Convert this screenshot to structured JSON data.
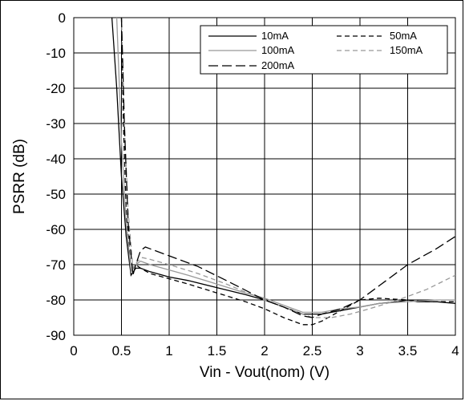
{
  "chart_data": {
    "type": "line",
    "title": "",
    "xlabel": "Vin - Vout(nom) (V)",
    "ylabel": "PSRR (dB)",
    "xlim": [
      0,
      4
    ],
    "ylim": [
      -90,
      0
    ],
    "xticks": [
      0,
      0.5,
      1,
      1.5,
      2,
      2.5,
      3,
      3.5,
      4
    ],
    "xtick_labels": [
      "0",
      "0.5",
      "1",
      "1.5",
      "2",
      "2.5",
      "3",
      "3.5",
      "4"
    ],
    "yticks": [
      0,
      -10,
      -20,
      -30,
      -40,
      -50,
      -60,
      -70,
      -80,
      -90
    ],
    "ytick_labels": [
      "0",
      "-10",
      "-20",
      "-30",
      "-40",
      "-50",
      "-60",
      "-70",
      "-80",
      "-90"
    ],
    "grid": true,
    "legend_position": "top-right",
    "series": [
      {
        "name": "10mA",
        "color": "#000000",
        "dash": "solid",
        "x": [
          0.4,
          0.45,
          0.5,
          0.55,
          0.6,
          0.65,
          0.7,
          0.8,
          1.0,
          1.2,
          1.5,
          1.8,
          2.0,
          2.2,
          2.4,
          2.5,
          2.6,
          2.8,
          3.0,
          3.2,
          3.4,
          3.5,
          3.6,
          3.8,
          4.0
        ],
        "y": [
          0,
          -20,
          -45,
          -62,
          -73,
          -71,
          -71,
          -72,
          -73.5,
          -74.5,
          -76.5,
          -78.5,
          -80,
          -82,
          -84,
          -84,
          -84,
          -83,
          -82,
          -81,
          -80.5,
          -80,
          -80.5,
          -80.5,
          -81
        ]
      },
      {
        "name": "50mA",
        "color": "#000000",
        "dash": "short-dash",
        "x": [
          0.5,
          0.52,
          0.55,
          0.6,
          0.65,
          0.7,
          0.8,
          1.0,
          1.2,
          1.5,
          1.8,
          2.0,
          2.2,
          2.4,
          2.5,
          2.6,
          2.8,
          3.0,
          3.2,
          3.5,
          3.7,
          4.0
        ],
        "y": [
          0,
          -30,
          -55,
          -72,
          -70,
          -71,
          -72.5,
          -74,
          -75.5,
          -78,
          -80.5,
          -82.5,
          -85,
          -87,
          -87,
          -86,
          -83,
          -80,
          -79.5,
          -80,
          -80.5,
          -80.5
        ]
      },
      {
        "name": "100mA",
        "color": "#999999",
        "dash": "solid",
        "x": [
          0.45,
          0.5,
          0.55,
          0.6,
          0.65,
          0.7,
          0.8,
          1.0,
          1.2,
          1.5,
          1.8,
          2.0,
          2.2,
          2.4,
          2.5,
          2.6,
          2.8,
          3.0,
          3.2,
          3.5,
          3.8,
          4.0
        ],
        "y": [
          0,
          -35,
          -58,
          -72,
          -70,
          -69,
          -70,
          -71.5,
          -73,
          -75.5,
          -78,
          -79.5,
          -81.5,
          -83.5,
          -83.5,
          -83.5,
          -82.5,
          -82,
          -81,
          -80.5,
          -80,
          -80
        ]
      },
      {
        "name": "150mA",
        "color": "#999999",
        "dash": "short-dash",
        "x": [
          0.5,
          0.53,
          0.57,
          0.62,
          0.67,
          0.72,
          0.8,
          1.0,
          1.3,
          1.6,
          2.0,
          2.3,
          2.5,
          2.7,
          2.9,
          3.1,
          3.4,
          3.7,
          4.0
        ],
        "y": [
          0,
          -30,
          -55,
          -71,
          -69,
          -68,
          -68.5,
          -70,
          -72.5,
          -75.5,
          -80,
          -83,
          -85,
          -85,
          -84,
          -82.5,
          -80,
          -77,
          -73
        ]
      },
      {
        "name": "200mA",
        "color": "#000000",
        "dash": "long-dash",
        "x": [
          0.5,
          0.53,
          0.57,
          0.62,
          0.65,
          0.7,
          0.75,
          0.8,
          1.0,
          1.3,
          1.6,
          2.0,
          2.2,
          2.4,
          2.5,
          2.6,
          2.8,
          3.0,
          3.2,
          3.5,
          3.8,
          4.0
        ],
        "y": [
          0,
          -30,
          -58,
          -73,
          -70,
          -66,
          -65,
          -65.5,
          -67.5,
          -70.5,
          -74.5,
          -80,
          -82,
          -84.5,
          -85,
          -84,
          -82.5,
          -80,
          -76,
          -70,
          -65.5,
          -62
        ]
      }
    ]
  }
}
